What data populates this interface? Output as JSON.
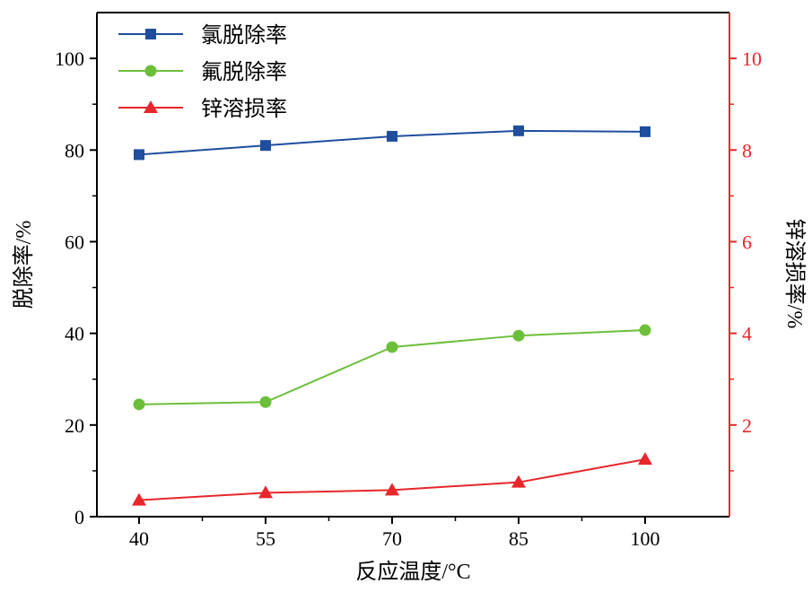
{
  "chart_data": {
    "type": "line",
    "x": [
      40,
      55,
      70,
      85,
      100
    ],
    "xlabel": "反应温度/°C",
    "ylabel": "脱除率/%",
    "y2label": "锌溶损率/%",
    "ylim": [
      0,
      110
    ],
    "y2lim": [
      0,
      11
    ],
    "yticks": [
      0,
      20,
      40,
      60,
      80,
      100
    ],
    "y2ticks": [
      2,
      4,
      6,
      8,
      10
    ],
    "xticks": [
      40,
      55,
      70,
      85,
      100
    ],
    "series": [
      {
        "name": "氯脱除率",
        "axis": "left",
        "marker": "square",
        "color": "#1f4e9e",
        "values": [
          79.0,
          81.0,
          83.0,
          84.2,
          84.0
        ]
      },
      {
        "name": "氟脱除率",
        "axis": "left",
        "marker": "circle",
        "color": "#6cbf3a",
        "values": [
          24.5,
          25.0,
          37.0,
          39.5,
          40.7
        ]
      },
      {
        "name": "锌溶损率",
        "axis": "right",
        "marker": "triangle",
        "color": "#e8262b",
        "values": [
          0.36,
          0.52,
          0.58,
          0.75,
          1.25
        ]
      }
    ],
    "legend_position": "top-left",
    "axis_colors": {
      "left": "#000000",
      "right": "#e8262b"
    }
  }
}
